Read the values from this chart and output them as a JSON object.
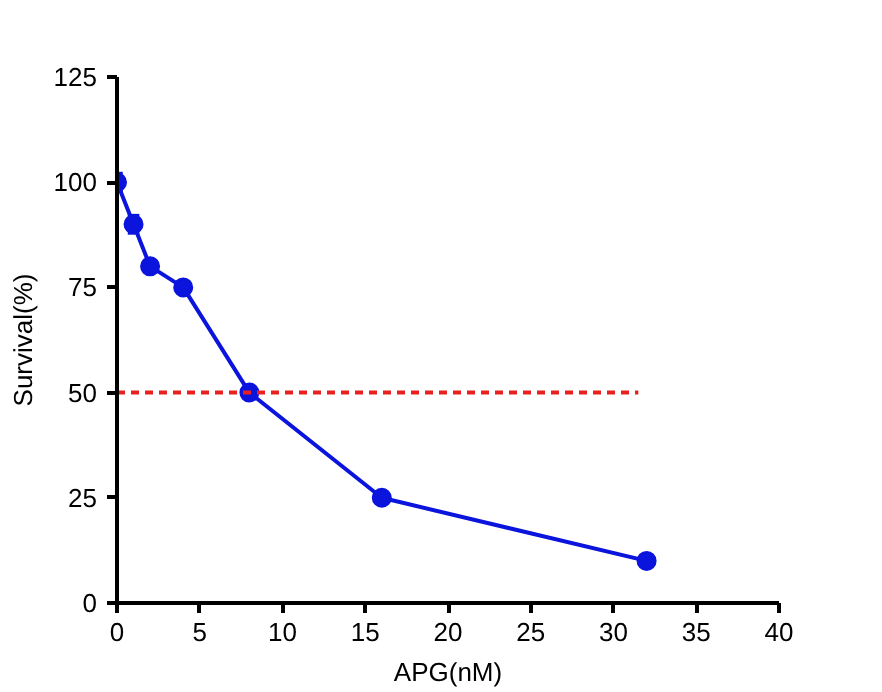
{
  "chart_data": {
    "type": "line",
    "xlabel": "APG(nM)",
    "ylabel": "Survival(%)",
    "xlim": [
      0,
      40
    ],
    "xticks": [
      0,
      5,
      10,
      15,
      20,
      25,
      30,
      35,
      40
    ],
    "ylim": [
      0,
      125
    ],
    "yticks": [
      0,
      25,
      50,
      75,
      100,
      125
    ],
    "grid": false,
    "marker": "circle",
    "series": [
      {
        "color": "#0a14dc",
        "x": [
          0,
          1,
          2,
          4,
          8,
          16,
          32
        ],
        "values": [
          100,
          90,
          80,
          75,
          50,
          25,
          10
        ],
        "errors": [
          2,
          2,
          null,
          null,
          null,
          null,
          null
        ]
      },
      {
        "type": "line",
        "color": "#e8201e",
        "line_style": "dashed",
        "marker": "none",
        "x": [
          0,
          31.5
        ],
        "values": [
          50,
          50
        ]
      }
    ]
  }
}
